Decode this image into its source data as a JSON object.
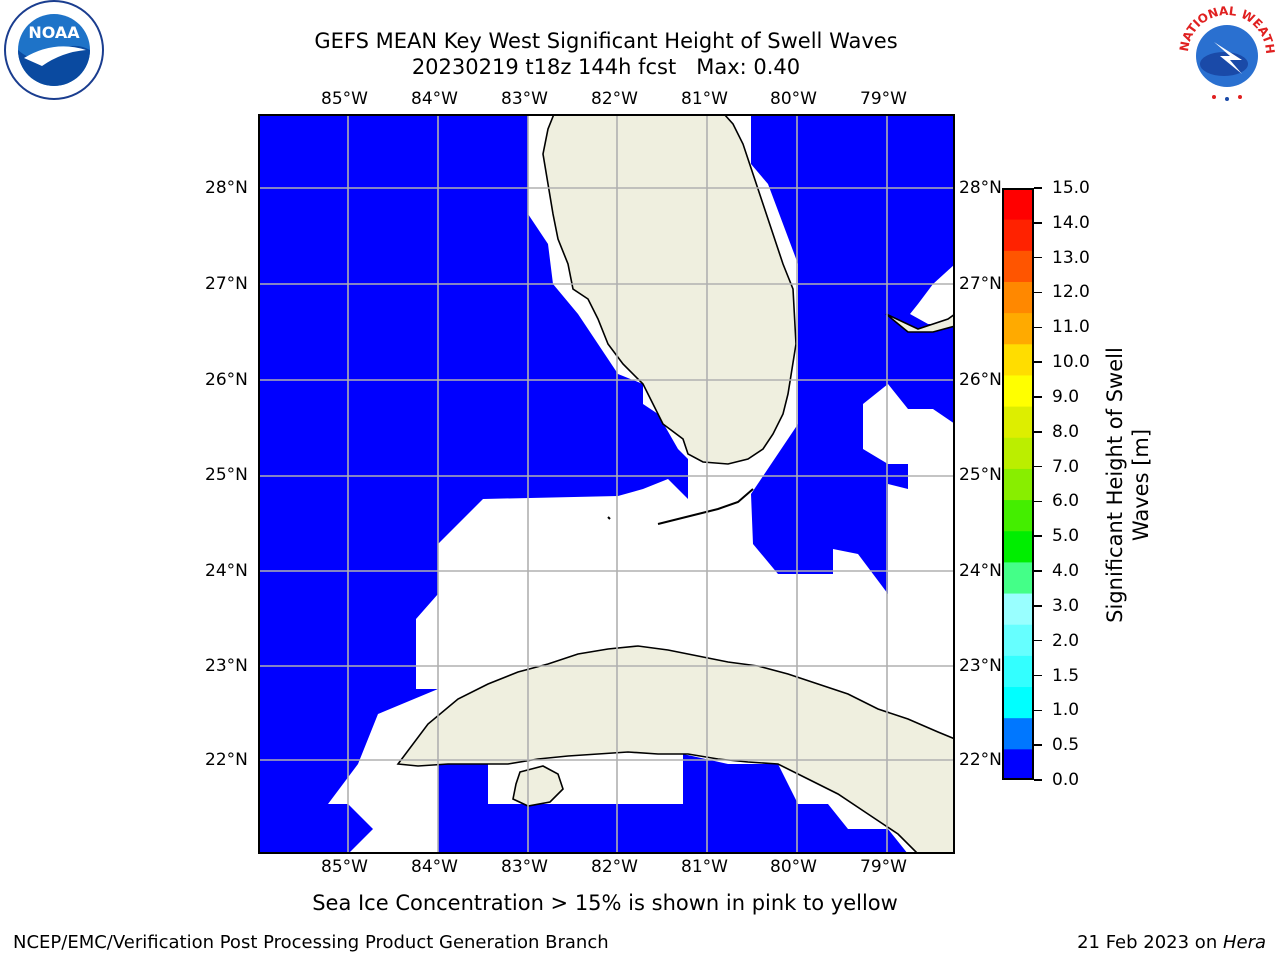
{
  "header": {
    "title_line1": "GEFS MEAN Key West Significant Height of Swell Waves",
    "title_line2": "20230219 t18z 144h fcst   Max: 0.40"
  },
  "logos": {
    "left": {
      "icon": "noaa-logo",
      "text": "NOAA"
    },
    "right": {
      "icon": "nws-logo",
      "text": "NATIONAL WEATHER SERVICE"
    }
  },
  "map": {
    "lon_labels": [
      "85°W",
      "84°W",
      "83°W",
      "82°W",
      "81°W",
      "80°W",
      "79°W"
    ],
    "lat_labels": [
      "28°N",
      "27°N",
      "26°N",
      "25°N",
      "24°N",
      "23°N",
      "22°N"
    ],
    "colors": {
      "ocean_fill": "#0000ff",
      "land": "#efefdf",
      "grid": "#b0b0b0"
    }
  },
  "colorbar": {
    "label": "Significant Height of Swell Waves [m]",
    "ticks": [
      "0.0",
      "0.5",
      "1.0",
      "1.5",
      "2.0",
      "3.0",
      "4.0",
      "5.0",
      "6.0",
      "7.0",
      "8.0",
      "9.0",
      "10.0",
      "11.0",
      "12.0",
      "13.0",
      "14.0",
      "15.0"
    ],
    "colors": [
      "#0000ff",
      "#0077ff",
      "#00ffff",
      "#33ffff",
      "#66ffff",
      "#99ffff",
      "#44ff88",
      "#00ee00",
      "#44ee00",
      "#88ee00",
      "#bbee00",
      "#ddee00",
      "#ffff00",
      "#ffdd00",
      "#ffaa00",
      "#ff8800",
      "#ff5500",
      "#ff2200",
      "#ff0000"
    ]
  },
  "notes": {
    "sea_ice": "Sea Ice Concentration > 15% is shown in pink to yellow"
  },
  "footer": {
    "left": "NCEP/EMC/Verification Post Processing Product Generation Branch",
    "right_date": "21 Feb 2023 on ",
    "right_host": "Hera"
  }
}
